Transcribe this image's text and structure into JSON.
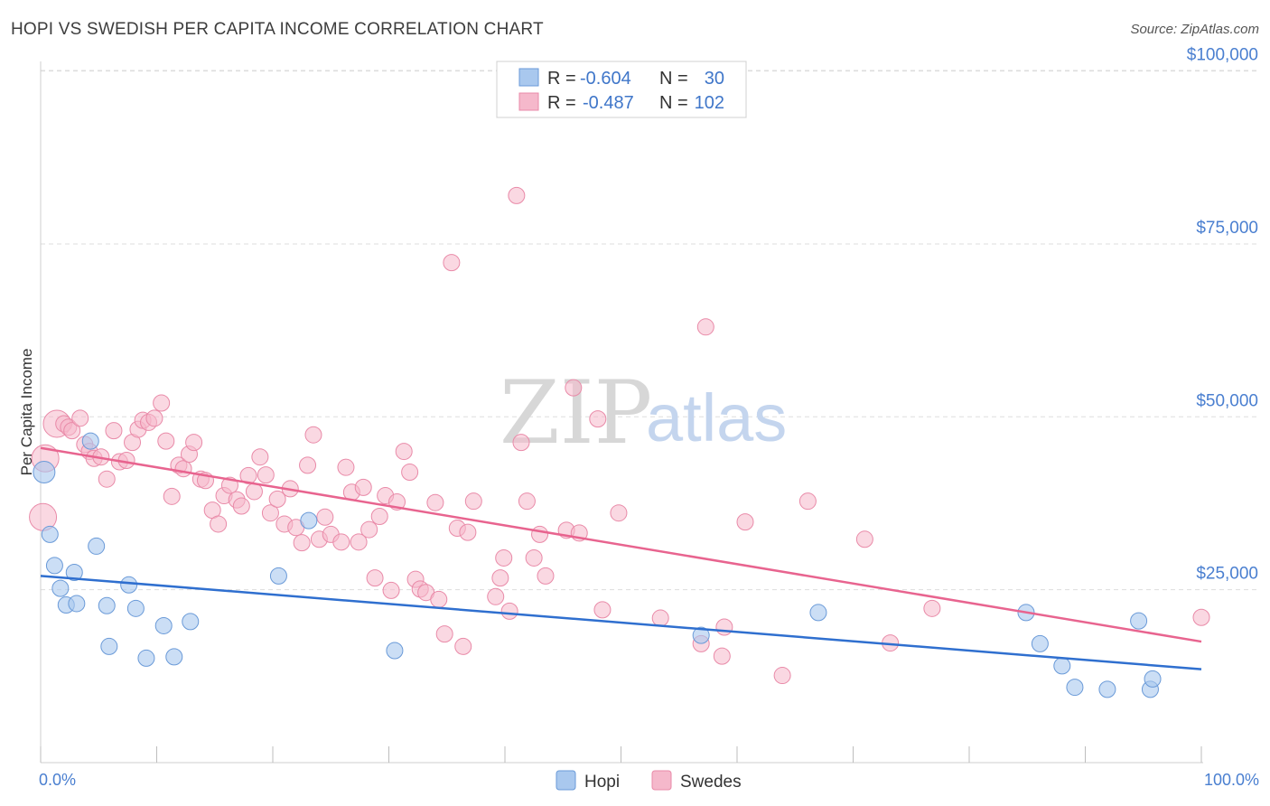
{
  "header": {
    "title": "HOPI VS SWEDISH PER CAPITA INCOME CORRELATION CHART",
    "source": "Source: ZipAtlas.com"
  },
  "watermark": {
    "part1": "ZIP",
    "part2": "atlas"
  },
  "legend_box": {
    "rows": [
      {
        "r_label": "R =",
        "r_value": "-0.604",
        "n_label": "N =",
        "n_value": "30",
        "color": "#a9c8ee"
      },
      {
        "r_label": "R =",
        "r_value": "-0.487",
        "n_label": "N =",
        "n_value": "102",
        "color": "#f5b8cb"
      }
    ]
  },
  "bottom_legend": [
    {
      "label": "Hopi",
      "color": "#a9c8ee"
    },
    {
      "label": "Swedes",
      "color": "#f5b8cb"
    }
  ],
  "colors": {
    "hopi_fill": "#a9c8ee",
    "hopi_stroke": "#6a9ad8",
    "hopi_line": "#2f6fcf",
    "swedes_fill": "#f5b8cb",
    "swedes_stroke": "#e98aa8",
    "swedes_line": "#e8648f",
    "tick_label": "#4a7fd0",
    "grid": "#dddddd"
  },
  "chart_data": {
    "type": "scatter",
    "title": "HOPI VS SWEDISH PER CAPITA INCOME CORRELATION CHART",
    "xlabel": "",
    "ylabel": "Per Capita Income",
    "xlim": [
      0,
      100
    ],
    "ylim": [
      0,
      104000
    ],
    "x_tick_labels": [
      "0.0%",
      "100.0%"
    ],
    "y_ticks": [
      25000,
      50000,
      75000,
      100000
    ],
    "y_tick_labels": [
      "$25,000",
      "$50,000",
      "$75,000",
      "$100,000"
    ],
    "grid": true,
    "legend_position": "top-center",
    "series": [
      {
        "name": "Hopi",
        "r": -0.604,
        "n": 30,
        "trend": [
          [
            0,
            27000
          ],
          [
            100,
            13500
          ]
        ],
        "points": [
          [
            0.3,
            42000
          ],
          [
            0.8,
            33000
          ],
          [
            1.2,
            28500
          ],
          [
            1.7,
            25200
          ],
          [
            2.2,
            22800
          ],
          [
            2.9,
            27500
          ],
          [
            3.1,
            23000
          ],
          [
            4.3,
            46500
          ],
          [
            4.8,
            31300
          ],
          [
            5.7,
            22700
          ],
          [
            5.9,
            16800
          ],
          [
            7.6,
            25700
          ],
          [
            8.2,
            22300
          ],
          [
            9.1,
            15100
          ],
          [
            10.6,
            19800
          ],
          [
            11.5,
            15300
          ],
          [
            12.9,
            20400
          ],
          [
            20.5,
            27000
          ],
          [
            23.1,
            35000
          ],
          [
            30.5,
            16200
          ],
          [
            56.9,
            18400
          ],
          [
            67.0,
            21700
          ],
          [
            84.9,
            21700
          ],
          [
            86.1,
            17200
          ],
          [
            88.0,
            14000
          ],
          [
            89.1,
            10900
          ],
          [
            91.9,
            10600
          ],
          [
            94.6,
            20500
          ],
          [
            95.6,
            10600
          ],
          [
            95.8,
            12100
          ]
        ]
      },
      {
        "name": "Swedes",
        "r": -0.487,
        "n": 102,
        "trend": [
          [
            0,
            45500
          ],
          [
            100,
            17500
          ]
        ],
        "points": [
          [
            0.2,
            35500
          ],
          [
            0.4,
            44000
          ],
          [
            1.4,
            49000
          ],
          [
            2.0,
            49000
          ],
          [
            2.4,
            48500
          ],
          [
            2.7,
            48000
          ],
          [
            3.4,
            49800
          ],
          [
            3.8,
            46000
          ],
          [
            4.2,
            45000
          ],
          [
            4.6,
            44000
          ],
          [
            5.2,
            44200
          ],
          [
            5.7,
            41000
          ],
          [
            6.3,
            48000
          ],
          [
            6.8,
            43500
          ],
          [
            7.4,
            43700
          ],
          [
            7.9,
            46300
          ],
          [
            8.4,
            48200
          ],
          [
            8.8,
            49500
          ],
          [
            9.3,
            49200
          ],
          [
            9.8,
            49800
          ],
          [
            10.4,
            52000
          ],
          [
            10.8,
            46500
          ],
          [
            11.3,
            38500
          ],
          [
            11.9,
            43000
          ],
          [
            12.3,
            42500
          ],
          [
            12.8,
            44600
          ],
          [
            13.2,
            46300
          ],
          [
            13.8,
            41000
          ],
          [
            14.2,
            40800
          ],
          [
            14.8,
            36500
          ],
          [
            15.3,
            34500
          ],
          [
            15.8,
            38600
          ],
          [
            16.3,
            40100
          ],
          [
            16.9,
            38000
          ],
          [
            17.3,
            37100
          ],
          [
            17.9,
            41500
          ],
          [
            18.4,
            39200
          ],
          [
            18.9,
            44200
          ],
          [
            19.4,
            41600
          ],
          [
            19.8,
            36100
          ],
          [
            20.4,
            38100
          ],
          [
            21.0,
            34500
          ],
          [
            21.5,
            39600
          ],
          [
            22.0,
            34000
          ],
          [
            22.5,
            31800
          ],
          [
            23.0,
            43000
          ],
          [
            23.5,
            47400
          ],
          [
            24.0,
            32300
          ],
          [
            24.5,
            35500
          ],
          [
            25.0,
            33000
          ],
          [
            25.9,
            31900
          ],
          [
            26.3,
            42700
          ],
          [
            26.8,
            39100
          ],
          [
            27.4,
            31900
          ],
          [
            27.8,
            39800
          ],
          [
            28.3,
            33700
          ],
          [
            28.8,
            26700
          ],
          [
            29.2,
            35600
          ],
          [
            29.7,
            38600
          ],
          [
            30.2,
            24900
          ],
          [
            30.7,
            37700
          ],
          [
            31.3,
            45000
          ],
          [
            31.8,
            42000
          ],
          [
            32.3,
            26500
          ],
          [
            32.7,
            25100
          ],
          [
            33.2,
            24600
          ],
          [
            34.0,
            37600
          ],
          [
            34.3,
            23600
          ],
          [
            34.8,
            18600
          ],
          [
            35.4,
            72300
          ],
          [
            35.9,
            33900
          ],
          [
            36.4,
            16800
          ],
          [
            36.8,
            33300
          ],
          [
            37.3,
            37800
          ],
          [
            39.2,
            24000
          ],
          [
            39.6,
            26700
          ],
          [
            39.9,
            29600
          ],
          [
            40.4,
            21900
          ],
          [
            41.0,
            82000
          ],
          [
            41.4,
            46300
          ],
          [
            41.9,
            37800
          ],
          [
            42.5,
            29600
          ],
          [
            43.0,
            33000
          ],
          [
            43.5,
            27000
          ],
          [
            45.3,
            33600
          ],
          [
            45.9,
            54200
          ],
          [
            46.4,
            33200
          ],
          [
            48.0,
            49700
          ],
          [
            48.4,
            22100
          ],
          [
            49.8,
            36100
          ],
          [
            53.4,
            20900
          ],
          [
            56.9,
            17200
          ],
          [
            57.3,
            63000
          ],
          [
            58.7,
            15400
          ],
          [
            58.9,
            19600
          ],
          [
            60.7,
            34800
          ],
          [
            63.9,
            12600
          ],
          [
            66.1,
            37800
          ],
          [
            71.0,
            32300
          ],
          [
            73.2,
            17300
          ],
          [
            76.8,
            22300
          ],
          [
            100,
            21000
          ]
        ]
      }
    ]
  }
}
